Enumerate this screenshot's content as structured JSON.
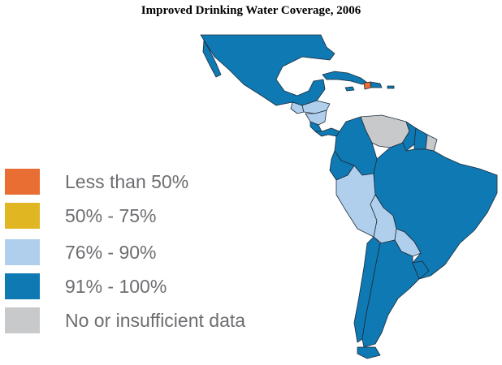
{
  "title": "Improved Drinking Water Coverage, 2006",
  "colors": {
    "lt50": "#e86e34",
    "c50_75": "#e0b623",
    "c76_90": "#b0cfec",
    "c91_100": "#0f79b3",
    "nodata": "#c8c9cb",
    "border": "#1d2c3a"
  },
  "legend": [
    {
      "label": "Less than 50%",
      "color": "#e86e34"
    },
    {
      "label": "50% - 75%",
      "color": "#e0b623"
    },
    {
      "label": "76% - 90%",
      "color": "#b0cfec"
    },
    {
      "label": "91% - 100%",
      "color": "#0f79b3"
    },
    {
      "label": "No or insufficient data",
      "color": "#c8c9cb"
    }
  ],
  "regions": [
    {
      "name": "Mexico",
      "class": "91% - 100%"
    },
    {
      "name": "Cuba",
      "class": "91% - 100%"
    },
    {
      "name": "Haiti",
      "class": "Less than 50%"
    },
    {
      "name": "Dominican Republic",
      "class": "91% - 100%"
    },
    {
      "name": "Guatemala",
      "class": "76% - 90%"
    },
    {
      "name": "Honduras",
      "class": "76% - 90%"
    },
    {
      "name": "Nicaragua",
      "class": "76% - 90%"
    },
    {
      "name": "Costa Rica",
      "class": "91% - 100%"
    },
    {
      "name": "Panama",
      "class": "91% - 100%"
    },
    {
      "name": "Venezuela",
      "class": "No or insufficient data"
    },
    {
      "name": "Colombia",
      "class": "91% - 100%"
    },
    {
      "name": "Guyana",
      "class": "91% - 100%"
    },
    {
      "name": "Suriname",
      "class": "91% - 100%"
    },
    {
      "name": "French Guiana",
      "class": "No or insufficient data"
    },
    {
      "name": "Ecuador",
      "class": "91% - 100%"
    },
    {
      "name": "Peru",
      "class": "76% - 90%"
    },
    {
      "name": "Brazil",
      "class": "91% - 100%"
    },
    {
      "name": "Bolivia",
      "class": "76% - 90%"
    },
    {
      "name": "Paraguay",
      "class": "76% - 90%"
    },
    {
      "name": "Chile",
      "class": "91% - 100%"
    },
    {
      "name": "Argentina",
      "class": "91% - 100%"
    },
    {
      "name": "Uruguay",
      "class": "91% - 100%"
    }
  ]
}
